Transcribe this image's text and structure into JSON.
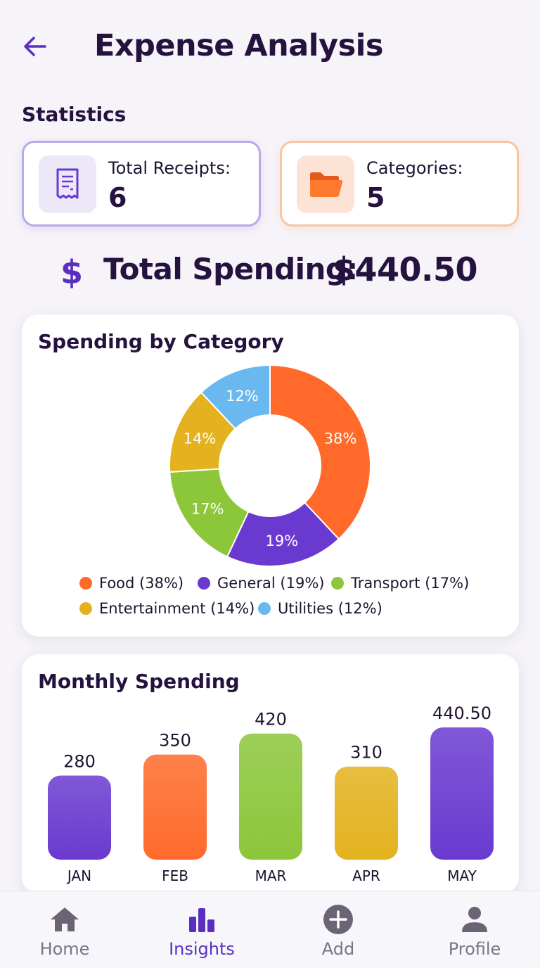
{
  "header": {
    "title": "Expense Analysis"
  },
  "statistics": {
    "title": "Statistics",
    "total_receipts": {
      "label": "Total Receipts:",
      "value": "6",
      "icon": "receipt-icon"
    },
    "categories": {
      "label": "Categories:",
      "value": "5",
      "icon": "folder-icon"
    }
  },
  "total_spending": {
    "label": "Total Spending:",
    "value": "$440.50"
  },
  "category_chart": {
    "title": "Spending by Category",
    "legend": [
      {
        "label": "Food (38%)"
      },
      {
        "label": "General (19%)"
      },
      {
        "label": "Transport (17%)"
      },
      {
        "label": "Entertainment (14%)"
      },
      {
        "label": "Utilities (12%)"
      }
    ]
  },
  "monthly_chart": {
    "title": "Monthly Spending"
  },
  "nav": {
    "items": [
      {
        "label": "Home",
        "icon": "home-icon"
      },
      {
        "label": "Insights",
        "icon": "bar-chart-icon"
      },
      {
        "label": "Add",
        "icon": "plus-circle-icon"
      },
      {
        "label": "Profile",
        "icon": "person-icon"
      }
    ],
    "active": "Insights"
  },
  "colors": {
    "accent": "#5a2fc0",
    "food": "#ff6a2b",
    "general": "#6a3ad0",
    "transport": "#8cc63a",
    "entertainment": "#e3b21e",
    "utilities": "#6ab8f0"
  },
  "chart_data": [
    {
      "type": "pie",
      "title": "Spending by Category",
      "categories": [
        "Food",
        "General",
        "Transport",
        "Entertainment",
        "Utilities"
      ],
      "values": [
        38,
        19,
        17,
        14,
        12
      ],
      "labels": [
        "38%",
        "19%",
        "17%",
        "14%",
        "12%"
      ],
      "colors": [
        "#ff6a2b",
        "#6a3ad0",
        "#8cc63a",
        "#e3b21e",
        "#6ab8f0"
      ],
      "legend": "bottom"
    },
    {
      "type": "bar",
      "title": "Monthly Spending",
      "categories": [
        "JAN",
        "FEB",
        "MAR",
        "APR",
        "MAY"
      ],
      "values": [
        280,
        350,
        420,
        310,
        440.5
      ],
      "labels": [
        "280",
        "350",
        "420",
        "310",
        "440.50"
      ],
      "colors": [
        "#6a3ad0",
        "#ff6a2b",
        "#8cc63a",
        "#e3b21e",
        "#6a3ad0"
      ]
    }
  ]
}
